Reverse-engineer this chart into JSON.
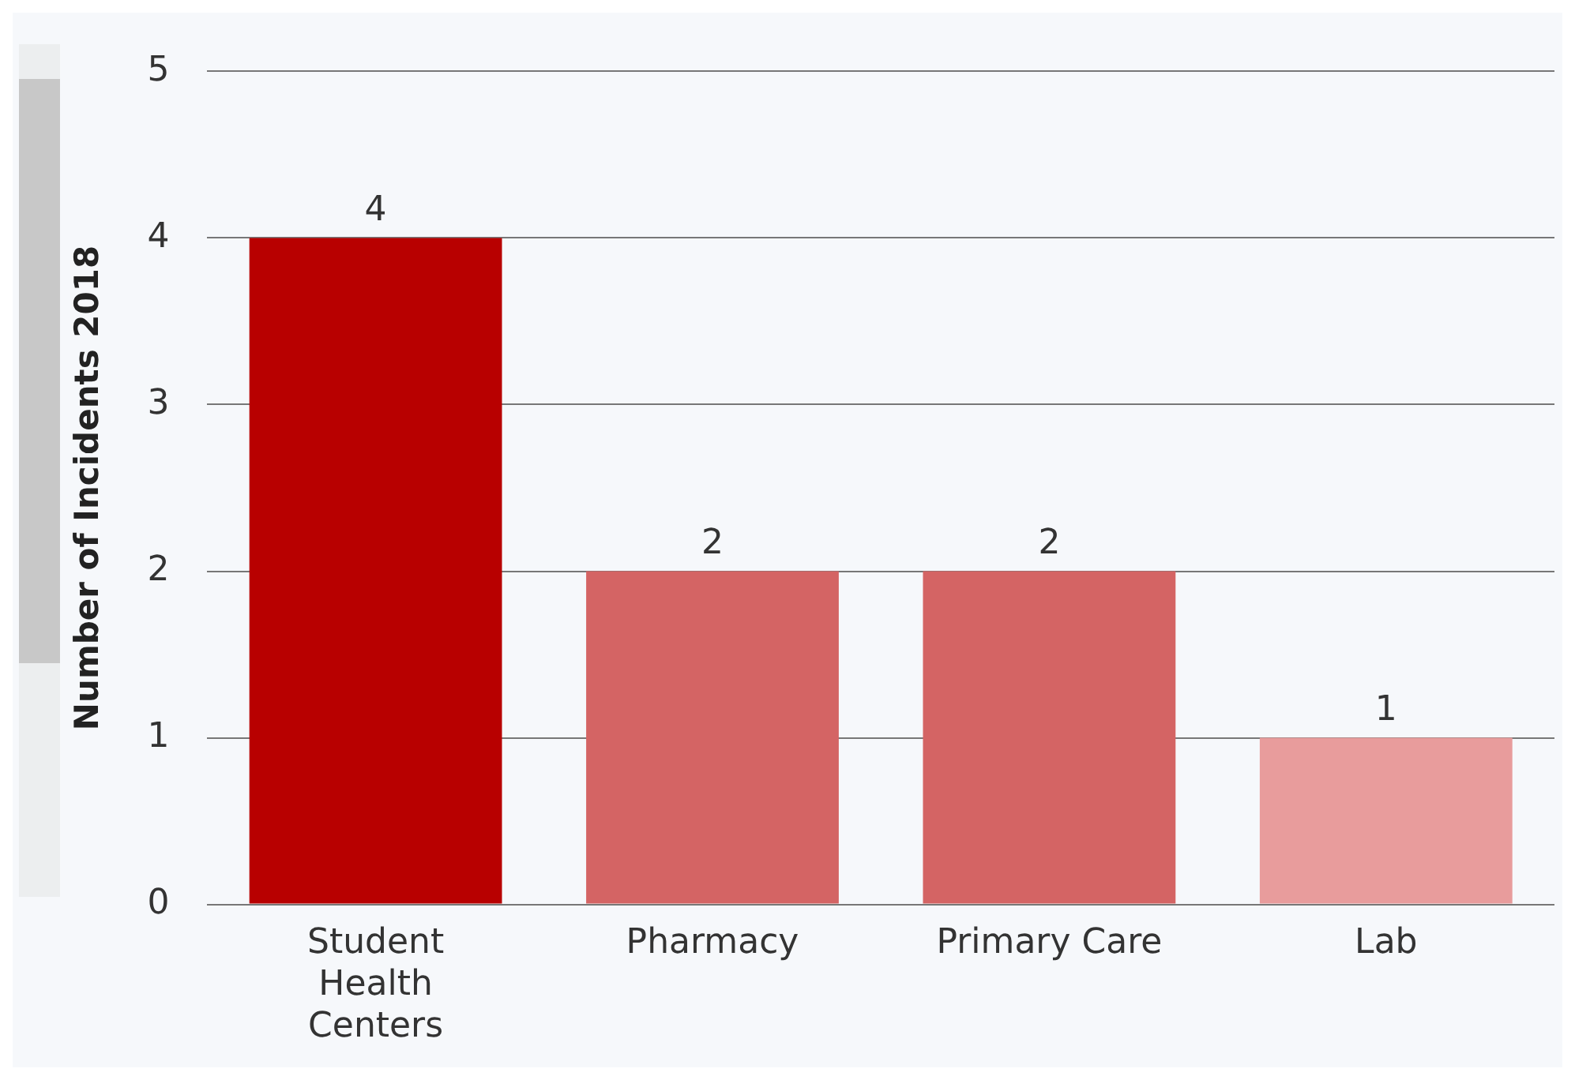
{
  "chart_data": {
    "type": "bar",
    "ylabel": "Number of Incidents 2018",
    "categories": [
      "Student Health Centers",
      "Pharmacy",
      "Primary Care",
      "Lab"
    ],
    "values": [
      4,
      2,
      2,
      1
    ],
    "colors": [
      "#b80000",
      "#d46464",
      "#d46464",
      "#e89c9c"
    ],
    "ylim": [
      0,
      5
    ],
    "yticks": [
      0,
      1,
      2,
      3,
      4,
      5
    ],
    "grid": "y",
    "data_labels": true
  }
}
